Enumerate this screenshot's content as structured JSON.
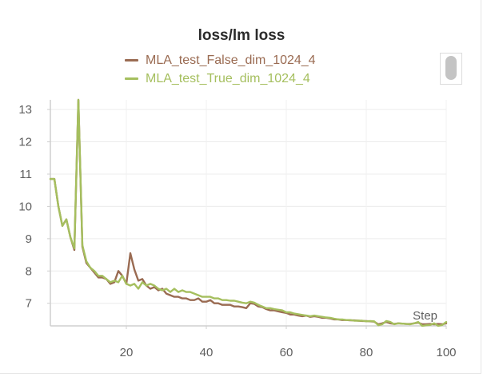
{
  "chart_data": {
    "type": "line",
    "title": "loss/lm loss",
    "xlabel": "Step",
    "ylabel": "",
    "xlim": [
      1,
      100
    ],
    "ylim": [
      6.3,
      13.3
    ],
    "xticks": [
      20,
      40,
      60,
      80,
      100
    ],
    "yticks": [
      7,
      8,
      9,
      10,
      11,
      12,
      13
    ],
    "grid": true,
    "legend_position": "top-center",
    "series": [
      {
        "name": "MLA_test_False_dim_1024_4",
        "color": "#9a6b52",
        "x": [
          1,
          2,
          3,
          4,
          5,
          6,
          7,
          8,
          9,
          10,
          11,
          12,
          13,
          14,
          15,
          16,
          17,
          18,
          19,
          20,
          21,
          22,
          23,
          24,
          25,
          26,
          27,
          28,
          29,
          30,
          31,
          32,
          33,
          34,
          35,
          36,
          37,
          38,
          39,
          40,
          41,
          42,
          43,
          44,
          45,
          46,
          47,
          48,
          49,
          50,
          51,
          52,
          53,
          54,
          55,
          56,
          57,
          58,
          59,
          60,
          61,
          62,
          63,
          64,
          65,
          66,
          67,
          68,
          69,
          70,
          71,
          72,
          73,
          74,
          75,
          76,
          77,
          78,
          79,
          80,
          81,
          82,
          83,
          84,
          85,
          86,
          87,
          88,
          89,
          90,
          91,
          92,
          93,
          94,
          95,
          96,
          97,
          98,
          99,
          100
        ],
        "y": [
          10.85,
          10.85,
          10.0,
          9.4,
          9.6,
          9.05,
          8.65,
          13.3,
          8.75,
          8.25,
          8.1,
          7.95,
          7.8,
          7.8,
          7.75,
          7.6,
          7.65,
          8.0,
          7.85,
          7.6,
          8.55,
          8.05,
          7.7,
          7.75,
          7.55,
          7.45,
          7.5,
          7.4,
          7.45,
          7.3,
          7.25,
          7.2,
          7.2,
          7.15,
          7.15,
          7.1,
          7.1,
          7.15,
          7.05,
          7.05,
          7.1,
          7.0,
          7.0,
          6.95,
          6.95,
          6.95,
          6.9,
          6.9,
          6.88,
          6.85,
          7.0,
          6.98,
          6.9,
          6.88,
          6.82,
          6.78,
          6.78,
          6.75,
          6.72,
          6.7,
          6.65,
          6.65,
          6.62,
          6.6,
          6.62,
          6.58,
          6.6,
          6.58,
          6.55,
          6.55,
          6.53,
          6.5,
          6.5,
          6.48,
          6.48,
          6.47,
          6.47,
          6.46,
          6.45,
          6.45,
          6.44,
          6.43,
          6.35,
          6.38,
          6.42,
          6.38,
          6.36,
          6.38,
          6.37,
          6.36,
          6.36,
          6.38,
          6.4,
          6.35,
          6.35,
          6.36,
          6.35,
          6.36,
          6.35,
          6.38
        ]
      },
      {
        "name": "MLA_test_True_dim_1024_4",
        "color": "#a5bf5e",
        "x": [
          1,
          2,
          3,
          4,
          5,
          6,
          7,
          8,
          9,
          10,
          11,
          12,
          13,
          14,
          15,
          16,
          17,
          18,
          19,
          20,
          21,
          22,
          23,
          24,
          25,
          26,
          27,
          28,
          29,
          30,
          31,
          32,
          33,
          34,
          35,
          36,
          37,
          38,
          39,
          40,
          41,
          42,
          43,
          44,
          45,
          46,
          47,
          48,
          49,
          50,
          51,
          52,
          53,
          54,
          55,
          56,
          57,
          58,
          59,
          60,
          61,
          62,
          63,
          64,
          65,
          66,
          67,
          68,
          69,
          70,
          71,
          72,
          73,
          74,
          75,
          76,
          77,
          78,
          79,
          80,
          81,
          82,
          83,
          84,
          85,
          86,
          87,
          88,
          89,
          90,
          91,
          92,
          93,
          94,
          95,
          96,
          97,
          98,
          99,
          100
        ],
        "y": [
          10.85,
          10.85,
          10.0,
          9.4,
          9.6,
          9.05,
          8.7,
          13.3,
          8.8,
          8.3,
          8.1,
          8.0,
          7.85,
          7.85,
          7.75,
          7.65,
          7.7,
          7.65,
          7.85,
          7.6,
          7.55,
          7.6,
          7.45,
          7.65,
          7.55,
          7.6,
          7.55,
          7.45,
          7.4,
          7.45,
          7.35,
          7.45,
          7.35,
          7.4,
          7.35,
          7.35,
          7.3,
          7.25,
          7.2,
          7.2,
          7.2,
          7.15,
          7.15,
          7.1,
          7.1,
          7.08,
          7.08,
          7.05,
          7.02,
          7.0,
          7.05,
          7.02,
          6.95,
          6.9,
          6.85,
          6.85,
          6.82,
          6.8,
          6.78,
          6.72,
          6.72,
          6.68,
          6.66,
          6.64,
          6.62,
          6.6,
          6.62,
          6.6,
          6.58,
          6.56,
          6.55,
          6.52,
          6.5,
          6.5,
          6.48,
          6.48,
          6.46,
          6.46,
          6.46,
          6.44,
          6.45,
          6.44,
          6.32,
          6.35,
          6.45,
          6.42,
          6.35,
          6.38,
          6.37,
          6.36,
          6.35,
          6.38,
          6.42,
          6.3,
          6.32,
          6.33,
          6.38,
          6.3,
          6.33,
          6.42
        ]
      }
    ]
  }
}
